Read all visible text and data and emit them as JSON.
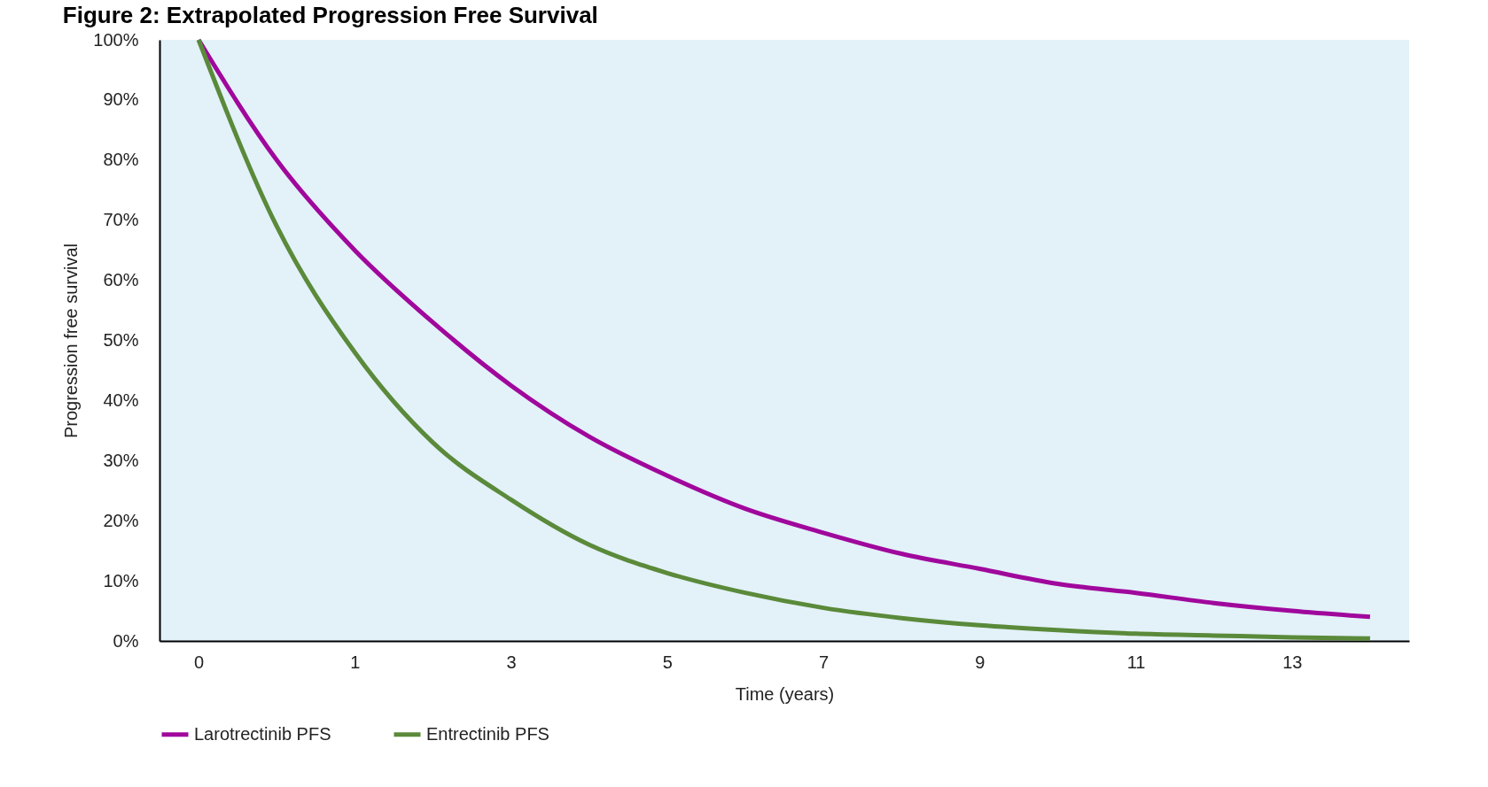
{
  "chart_data": {
    "type": "line",
    "title": "Figure 2: Extrapolated Progression Free Survival",
    "xlabel": "Time (years)",
    "ylabel": "Progression free survival",
    "categories": [
      "0",
      null,
      "1",
      null,
      "3",
      null,
      "5",
      null,
      "7",
      null,
      "9",
      null,
      "11",
      null,
      "13",
      null
    ],
    "series": [
      {
        "name": "Larotrectinib PFS",
        "color": "#a0089c",
        "values": [
          100,
          80,
          65,
          53,
          42.5,
          34,
          27.5,
          22,
          18,
          14.5,
          12,
          9.5,
          8,
          6.3,
          5,
          4
        ]
      },
      {
        "name": "Entrectinib PFS",
        "color": "#5a8a3a",
        "values": [
          100,
          69,
          48,
          33,
          23.5,
          16,
          11.3,
          8,
          5.5,
          3.8,
          2.6,
          1.8,
          1.2,
          0.9,
          0.6,
          0.4
        ]
      }
    ],
    "ylim": [
      0,
      100
    ],
    "yticks": [
      {
        "value": 0,
        "label": "0%"
      },
      {
        "value": 10,
        "label": "10%"
      },
      {
        "value": 20,
        "label": "20%"
      },
      {
        "value": 30,
        "label": "30%"
      },
      {
        "value": 40,
        "label": "40%"
      },
      {
        "value": 50,
        "label": "50%"
      },
      {
        "value": 60,
        "label": "60%"
      },
      {
        "value": 70,
        "label": "70%"
      },
      {
        "value": 80,
        "label": "80%"
      },
      {
        "value": 90,
        "label": "90%"
      },
      {
        "value": 100,
        "label": "100%"
      }
    ],
    "grid": false,
    "legend": "bottom",
    "marker": "none",
    "line_style": "solid"
  }
}
